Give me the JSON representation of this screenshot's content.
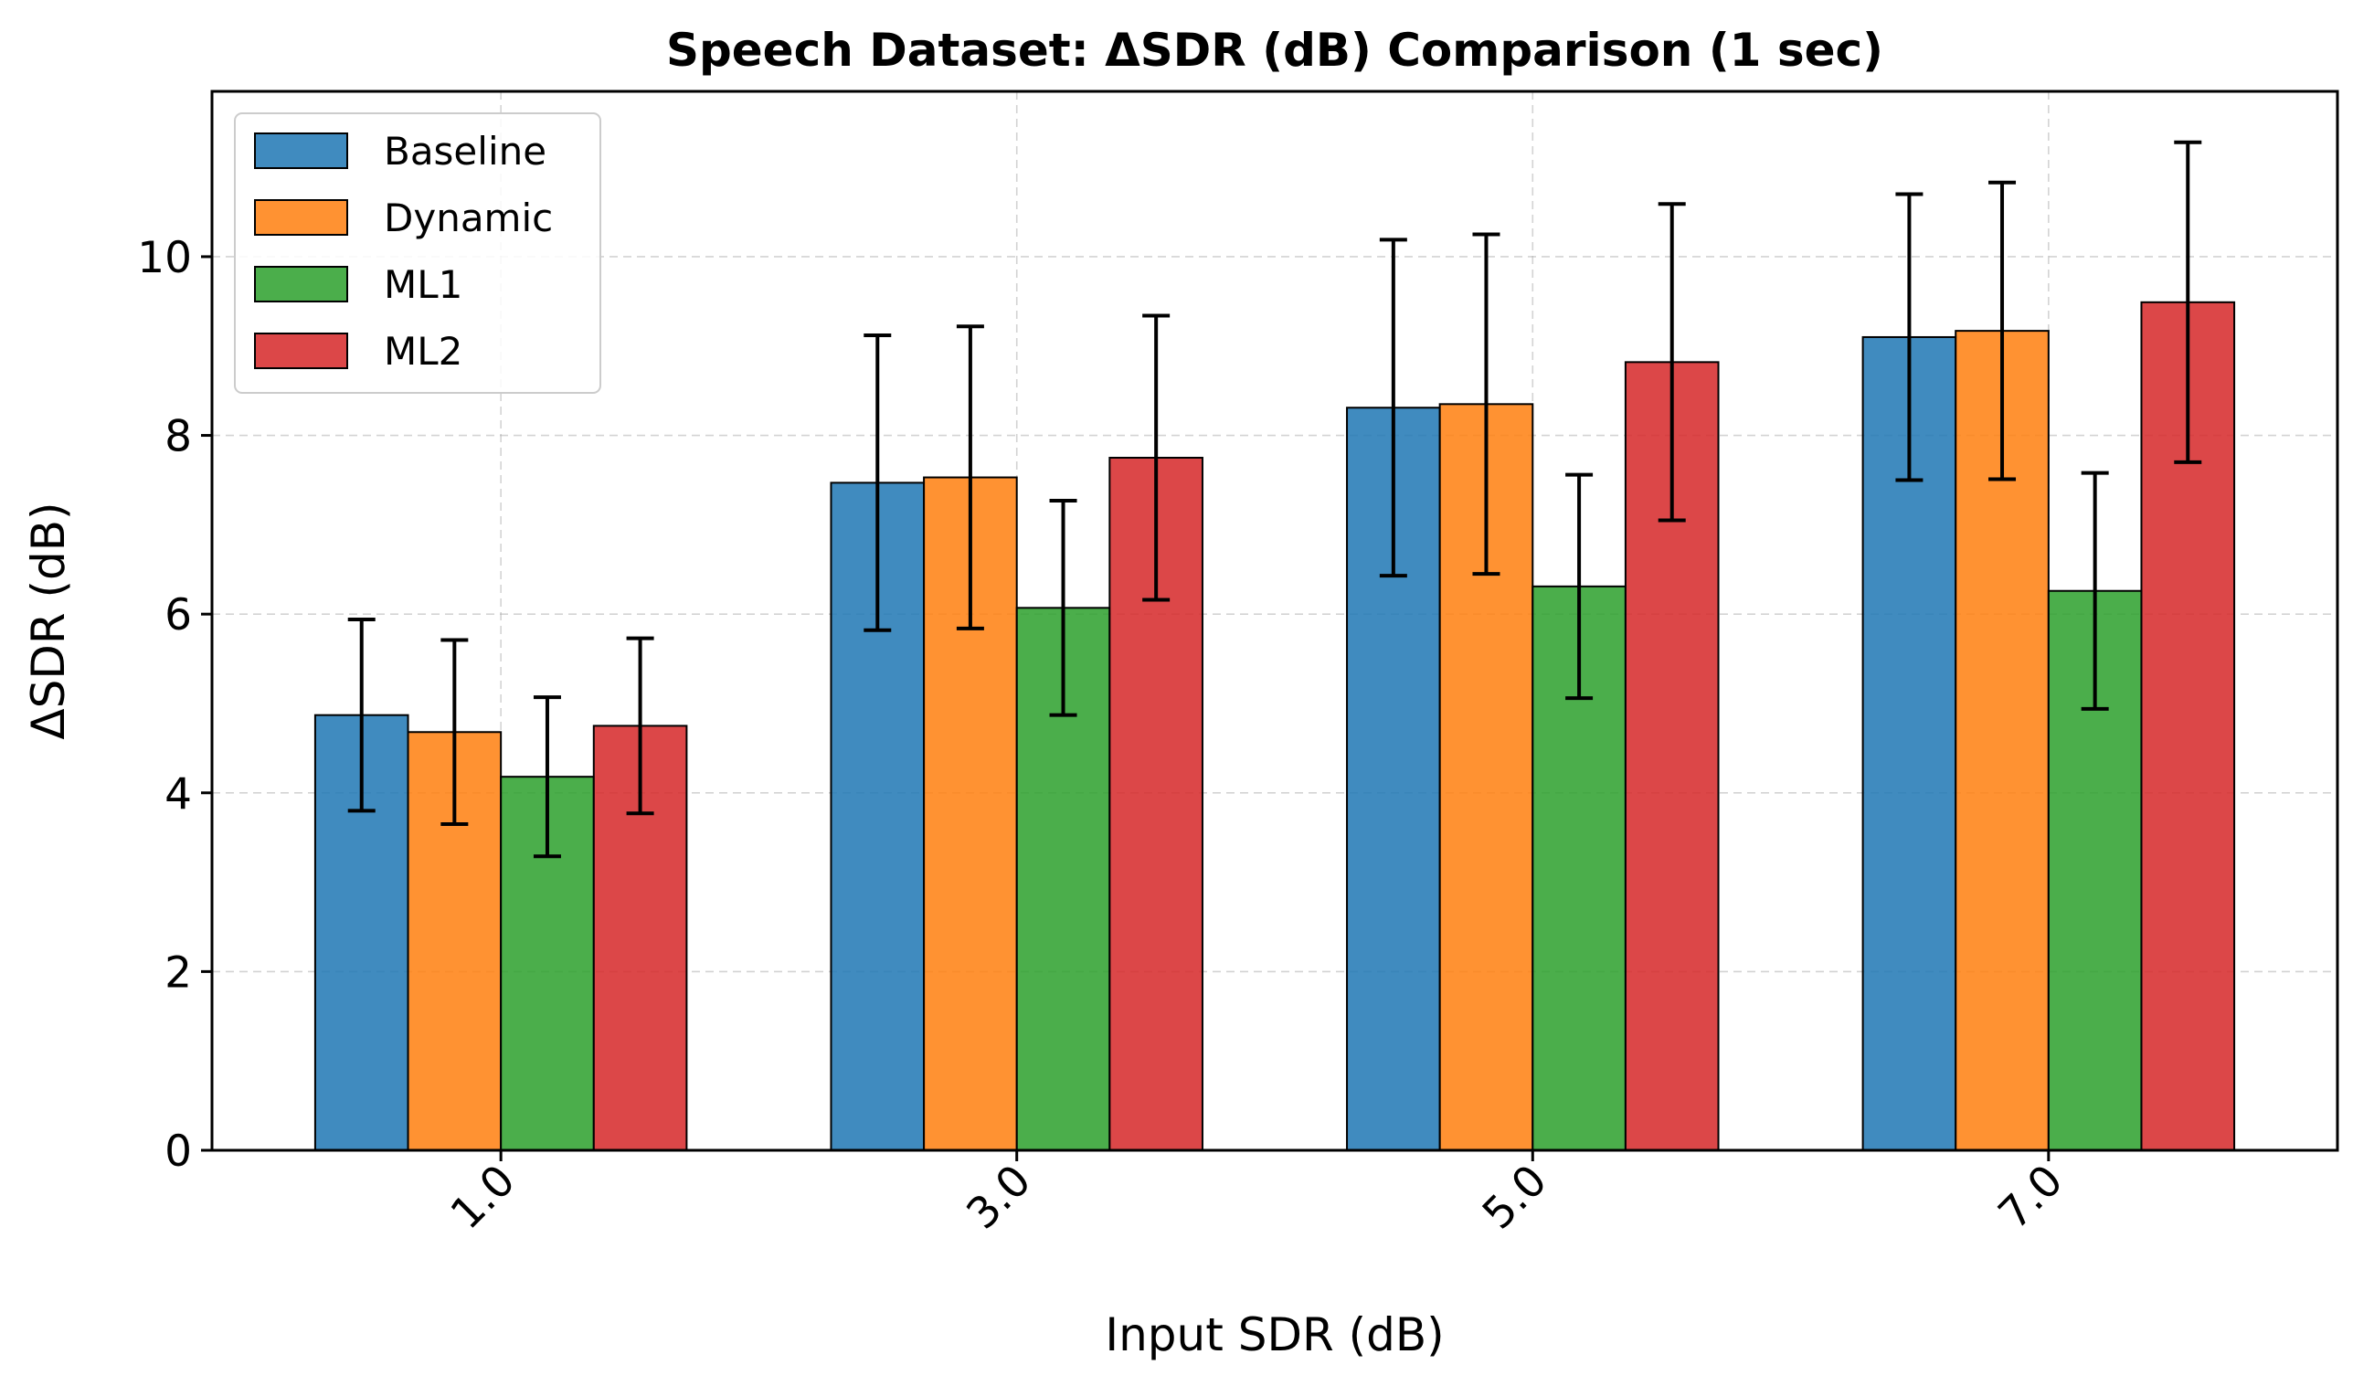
{
  "chart_data": {
    "type": "bar",
    "title": "Speech Dataset: ΔSDR (dB) Comparison (1 sec)",
    "xlabel": "Input SDR (dB)",
    "ylabel": "ΔSDR (dB)",
    "categories": [
      "1.0",
      "3.0",
      "5.0",
      "7.0"
    ],
    "ylim": [
      0,
      11.85
    ],
    "yticks": [
      0,
      2,
      4,
      6,
      8,
      10
    ],
    "grid": true,
    "legend_position": "upper-left",
    "series": [
      {
        "name": "Baseline",
        "color": "#1f77b4",
        "values": [
          4.87,
          7.47,
          8.31,
          9.1
        ],
        "errors": [
          1.07,
          1.65,
          1.88,
          1.6
        ]
      },
      {
        "name": "Dynamic",
        "color": "#ff7f0e",
        "values": [
          4.68,
          7.53,
          8.35,
          9.17
        ],
        "errors": [
          1.03,
          1.69,
          1.9,
          1.66
        ]
      },
      {
        "name": "ML1",
        "color": "#2ca02c",
        "values": [
          4.18,
          6.07,
          6.31,
          6.26
        ],
        "errors": [
          0.89,
          1.2,
          1.25,
          1.32
        ]
      },
      {
        "name": "ML2",
        "color": "#d62728",
        "values": [
          4.75,
          7.75,
          8.82,
          9.49
        ],
        "errors": [
          0.98,
          1.59,
          1.77,
          1.79
        ]
      }
    ]
  }
}
